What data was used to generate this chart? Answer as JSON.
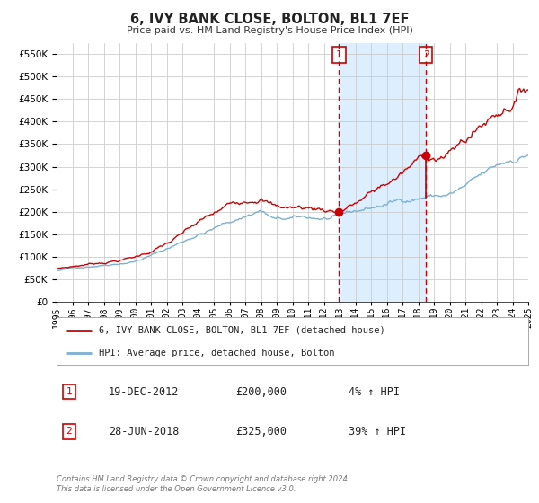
{
  "title": "6, IVY BANK CLOSE, BOLTON, BL1 7EF",
  "subtitle": "Price paid vs. HM Land Registry's House Price Index (HPI)",
  "legend_house": "6, IVY BANK CLOSE, BOLTON, BL1 7EF (detached house)",
  "legend_hpi": "HPI: Average price, detached house, Bolton",
  "footnote": "Contains HM Land Registry data © Crown copyright and database right 2024.\nThis data is licensed under the Open Government Licence v3.0.",
  "sale1_date": "19-DEC-2012",
  "sale1_price": 200000,
  "sale1_pct": "4%",
  "sale2_date": "28-JUN-2018",
  "sale2_price": 325000,
  "sale2_pct": "39%",
  "sale1_year": 2012.96,
  "sale2_year": 2018.49,
  "house_color": "#cc0000",
  "hpi_color": "#7ab0d4",
  "background_color": "#ffffff",
  "plot_bg_color": "#ffffff",
  "shade_color": "#ddeeff",
  "grid_color": "#cccccc",
  "ylim": [
    0,
    575000
  ],
  "yticks": [
    0,
    50000,
    100000,
    150000,
    200000,
    250000,
    300000,
    350000,
    400000,
    450000,
    500000,
    550000
  ],
  "xstart": 1995,
  "xend": 2025
}
